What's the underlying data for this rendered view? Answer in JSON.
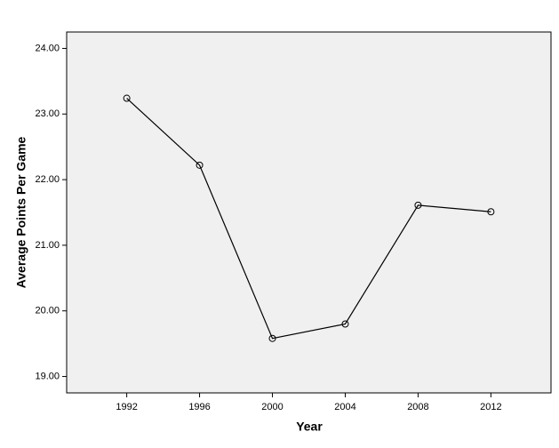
{
  "chart_data": {
    "type": "line",
    "x_label": "Year",
    "y_label": "Average Points Per Game",
    "x": [
      1992,
      1996,
      2000,
      2004,
      2008,
      2012
    ],
    "series": [
      {
        "color": "#000000",
        "values": [
          23.24,
          22.22,
          19.58,
          19.8,
          21.61,
          21.51
        ]
      }
    ],
    "xlim": [
      1988.7,
      2015.3
    ],
    "xticks": [
      1992,
      1996,
      2000,
      2004,
      2008,
      2012
    ],
    "ylim": [
      18.75,
      24.25
    ],
    "yticks": [
      {
        "value": 19,
        "label": "19.00"
      },
      {
        "value": 20,
        "label": "20.00"
      },
      {
        "value": 21,
        "label": "21.00"
      },
      {
        "value": 22,
        "label": "22.00"
      },
      {
        "value": 23,
        "label": "23.00"
      },
      {
        "value": 24,
        "label": "24.00"
      }
    ]
  }
}
